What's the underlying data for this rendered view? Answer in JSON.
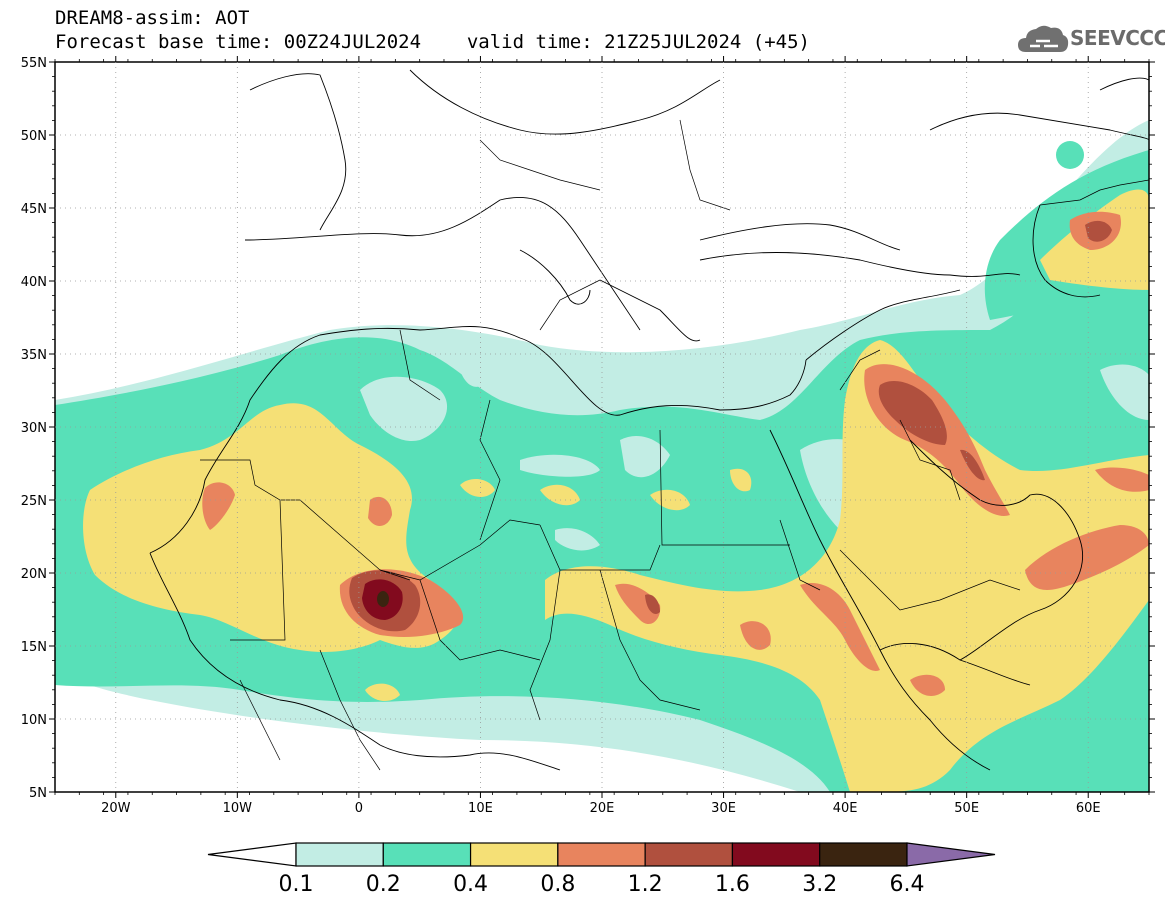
{
  "header": {
    "title": "DREAM8-assim: AOT",
    "base_label": "Forecast base time: 00Z24JUL2024",
    "valid_label": "valid time: 21Z25JUL2024 (+45)"
  },
  "logo": {
    "text": "SEEVCCC",
    "icon": "cloud-icon",
    "color": "#6b6b6b"
  },
  "map": {
    "lon_range": [
      -25,
      65
    ],
    "lat_range": [
      5,
      55
    ],
    "lat_labels": [
      {
        "value": 55,
        "text": "55N"
      },
      {
        "value": 50,
        "text": "50N"
      },
      {
        "value": 45,
        "text": "45N"
      },
      {
        "value": 40,
        "text": "40N"
      },
      {
        "value": 35,
        "text": "35N"
      },
      {
        "value": 30,
        "text": "30N"
      },
      {
        "value": 25,
        "text": "25N"
      },
      {
        "value": 20,
        "text": "20N"
      },
      {
        "value": 15,
        "text": "15N"
      },
      {
        "value": 10,
        "text": "10N"
      },
      {
        "value": 5,
        "text": "5N"
      }
    ],
    "lon_labels": [
      {
        "value": -20,
        "text": "20W"
      },
      {
        "value": -10,
        "text": "10W"
      },
      {
        "value": 0,
        "text": "0"
      },
      {
        "value": 10,
        "text": "10E"
      },
      {
        "value": 20,
        "text": "20E"
      },
      {
        "value": 30,
        "text": "30E"
      },
      {
        "value": 40,
        "text": "40E"
      },
      {
        "value": 50,
        "text": "50E"
      },
      {
        "value": 60,
        "text": "60E"
      }
    ],
    "grid": true
  },
  "colorbar": {
    "levels": [
      "0.1",
      "0.2",
      "0.4",
      "0.8",
      "1.2",
      "1.6",
      "3.2",
      "6.4"
    ],
    "colors": [
      "#ffffff",
      "#c2ede4",
      "#58e0b8",
      "#f5e076",
      "#e8845e",
      "#b0503e",
      "#820a1e",
      "#3a2410",
      "#8a6aa8"
    ]
  }
}
